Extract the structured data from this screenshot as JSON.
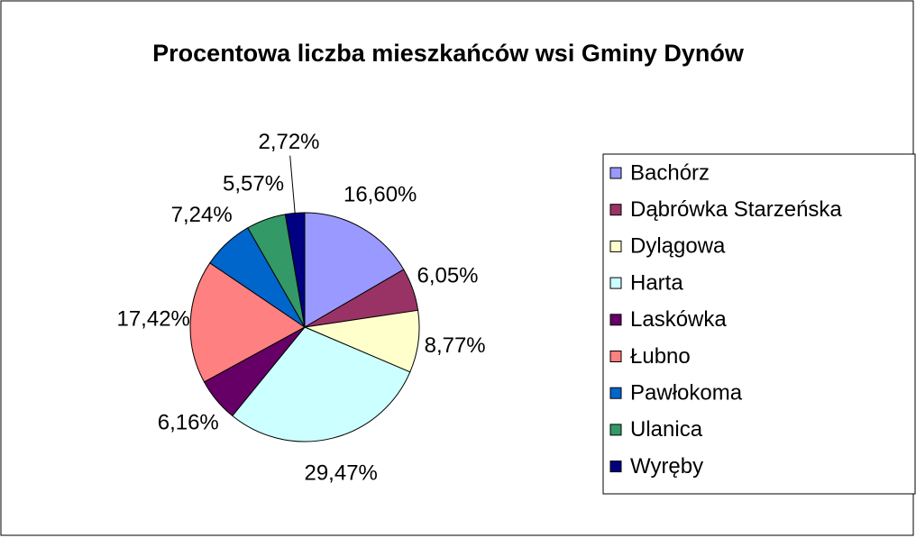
{
  "chart_data": {
    "type": "pie",
    "title": "Procentowa liczba mieszkańców wsi Gminy Dynów",
    "categories": [
      "Bachórz",
      "Dąbrówka Starzeńska",
      "Dylągowa",
      "Harta",
      "Laskówka",
      "Łubno",
      "Pawłokoma",
      "Ulanica",
      "Wyręby"
    ],
    "values": [
      16.6,
      6.05,
      8.77,
      29.47,
      6.16,
      17.42,
      7.24,
      5.57,
      2.72
    ],
    "value_labels": [
      "16,60%",
      "6,05%",
      "8,77%",
      "29,47%",
      "6,16%",
      "17,42%",
      "7,24%",
      "5,57%",
      "2,72%"
    ],
    "colors": [
      "#9999ff",
      "#993366",
      "#ffffcc",
      "#ccffff",
      "#660066",
      "#ff8080",
      "#0066cc",
      "#339966",
      "#000080"
    ],
    "legend": "right"
  }
}
